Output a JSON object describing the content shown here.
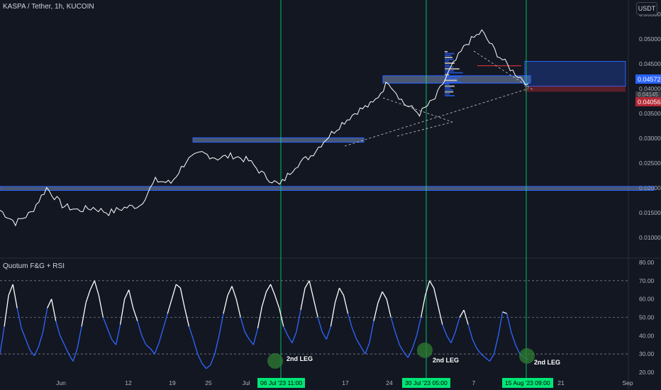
{
  "header": {
    "symbol_title": "KASPA / Tether, 1h, KUCOIN",
    "currency_button": "USDT",
    "indicator_title": "Quotum F&G + RSI"
  },
  "price_tags": {
    "current": "0.04572",
    "hidden": "0.04145",
    "lower": "0.04056"
  },
  "colors": {
    "background": "#131722",
    "price_line": "#ffffff",
    "zone_fill": "#2a4a8a",
    "zone_border": "#2962ff",
    "vertical_marker": "#00e676",
    "rsi_high": "#ffffff",
    "rsi_low": "#2f67ff",
    "circle": "#2e7d32"
  },
  "icons": [
    "currency-button"
  ],
  "chart_data": [
    {
      "type": "line",
      "title": "KASPA / Tether, 1h, KUCOIN",
      "y_axis_ticks": [
        "0.05500",
        "0.05000",
        "0.04500",
        "0.04000",
        "0.03500",
        "0.03000",
        "0.02500",
        "0.02000",
        "0.01500",
        "0.01000"
      ],
      "ylim": [
        0.0055,
        0.057
      ],
      "x_ticks": [
        "Jun",
        "12",
        "19",
        "25",
        "Jul",
        "17",
        "24",
        "7",
        "21",
        "Sep"
      ],
      "series": [
        {
          "values": [
            0.0155,
            0.013,
            0.015,
            0.02,
            0.0165,
            0.0155,
            0.016,
            0.015,
            0.016,
            0.0165,
            0.0215,
            0.021,
            0.0255,
            0.027,
            0.026,
            0.0265,
            0.0255,
            0.0225,
            0.0205,
            0.0245,
            0.0265,
            0.03,
            0.033,
            0.0355,
            0.037,
            0.0415,
            0.037,
            0.035,
            0.038,
            0.044,
            0.049,
            0.0515,
            0.047,
            0.0435,
            0.041
          ]
        }
      ],
      "zones": [
        {
          "label": "",
          "low": 0.0195,
          "high": 0.0203
        },
        {
          "label": "",
          "low": 0.0292,
          "high": 0.0301
        },
        {
          "label": "",
          "low": 0.0411,
          "high": 0.0426
        },
        {
          "label": "",
          "low": 0.0405,
          "high": 0.0455
        }
      ],
      "horizontal_line": 0.0446,
      "vertical_markers": [
        "06 Jul '23 11:00",
        "30 Jul '23 05:00",
        "15 Aug '23 09:00"
      ]
    },
    {
      "type": "line",
      "title": "Quotum F&G + RSI",
      "y_axis_ticks": [
        "80.00",
        "70.00",
        "60.00",
        "50.00",
        "40.00",
        "30.00",
        "20.00"
      ],
      "ylim": [
        20,
        80
      ],
      "levels": [
        70,
        50,
        30
      ],
      "series": [
        {
          "values": [
            30,
            45,
            62,
            68,
            55,
            44,
            38,
            32,
            29,
            34,
            42,
            55,
            60,
            48,
            40,
            35,
            30,
            26,
            33,
            45,
            58,
            65,
            70,
            62,
            50,
            44,
            38,
            35,
            46,
            60,
            65,
            55,
            48,
            40,
            35,
            33,
            30,
            36,
            44,
            52,
            60,
            68,
            66,
            55,
            45,
            38,
            30,
            25,
            22,
            24,
            30,
            40,
            52,
            62,
            67,
            60,
            50,
            42,
            38,
            35,
            44,
            56,
            64,
            68,
            62,
            55,
            45,
            40,
            36,
            42,
            54,
            66,
            70,
            60,
            50,
            42,
            38,
            45,
            58,
            66,
            62,
            52,
            44,
            38,
            34,
            30,
            36,
            48,
            58,
            64,
            60,
            50,
            42,
            35,
            31,
            28,
            33,
            40,
            50,
            62,
            70,
            66,
            56,
            46,
            40,
            36,
            42,
            50,
            54,
            46,
            38,
            33,
            30,
            28,
            26,
            30,
            40,
            53,
            52,
            42,
            35,
            30,
            28,
            27
          ]
        }
      ],
      "annotations": [
        "2nd LEG",
        "2nd LEG",
        "2nd LEG"
      ]
    }
  ]
}
